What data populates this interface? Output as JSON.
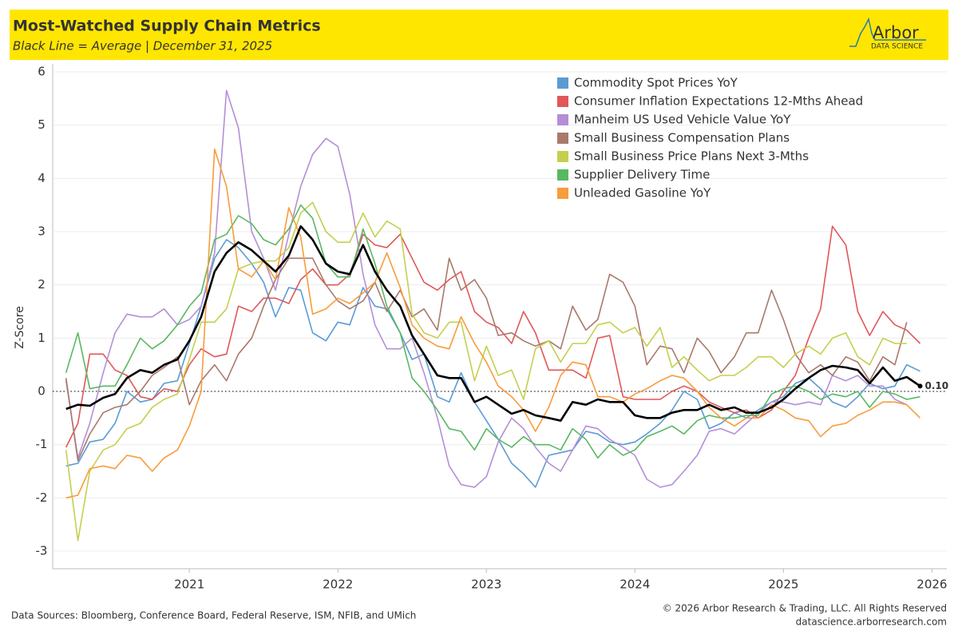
{
  "chart_data": {
    "type": "line",
    "title": "Most-Watched Supply Chain Metrics",
    "subtitle": "Black Line = Average |  December 31, 2025",
    "brand": "Arbor",
    "brand_sub": "DATA SCIENCE",
    "ylabel": "Z-Score",
    "source": "Data Sources: Bloomberg, Conference Board, Federal Reserve, ISM, NFIB, and UMich",
    "copyright": "© 2026 Arbor Research & Trading, LLC. All Rights Reserved",
    "url": "datascience.arborresearch.com",
    "xlim": [
      2020.08,
      2026.1
    ],
    "xticks": [
      2021,
      2022,
      2023,
      2024,
      2025,
      2026
    ],
    "ylim": [
      -3.33,
      6.15
    ],
    "yticks": [
      -3,
      -2,
      -1,
      0,
      1,
      2,
      3,
      4,
      5,
      6
    ],
    "grid": true,
    "reference_line": 0,
    "x": [
      2020.17,
      2020.25,
      2020.33,
      2020.42,
      2020.5,
      2020.58,
      2020.67,
      2020.75,
      2020.83,
      2020.92,
      2021,
      2021.08,
      2021.17,
      2021.25,
      2021.33,
      2021.42,
      2021.5,
      2021.58,
      2021.67,
      2021.75,
      2021.83,
      2021.92,
      2022,
      2022.08,
      2022.17,
      2022.25,
      2022.33,
      2022.42,
      2022.5,
      2022.58,
      2022.67,
      2022.75,
      2022.83,
      2022.92,
      2023,
      2023.08,
      2023.17,
      2023.25,
      2023.33,
      2023.42,
      2023.5,
      2023.58,
      2023.67,
      2023.75,
      2023.83,
      2023.92,
      2024,
      2024.08,
      2024.17,
      2024.25,
      2024.33,
      2024.42,
      2024.5,
      2024.58,
      2024.67,
      2024.75,
      2024.83,
      2024.92,
      2025,
      2025.08,
      2025.17,
      2025.25,
      2025.33,
      2025.42,
      2025.5,
      2025.58,
      2025.67,
      2025.75,
      2025.83,
      2025.92
    ],
    "series": [
      {
        "name": "Commodity Spot Prices YoY",
        "color": "#5a9bd4",
        "width": 1.6,
        "values": [
          -1.4,
          -1.35,
          -0.95,
          -0.9,
          -0.6,
          0.0,
          -0.2,
          -0.15,
          0.15,
          0.2,
          0.9,
          1.6,
          2.5,
          2.85,
          2.7,
          2.4,
          2.05,
          1.4,
          1.95,
          1.9,
          1.1,
          0.95,
          1.3,
          1.25,
          1.95,
          1.6,
          1.55,
          1.1,
          0.6,
          0.7,
          -0.1,
          -0.2,
          0.35,
          -0.2,
          -0.55,
          -0.9,
          -1.35,
          -1.55,
          -1.8,
          -1.2,
          -1.15,
          -1.1,
          -0.75,
          -0.8,
          -0.95,
          -1.0,
          -0.95,
          -0.8,
          -0.6,
          -0.35,
          0.0,
          -0.15,
          -0.7,
          -0.6,
          -0.4,
          -0.5,
          -0.35,
          -0.2,
          -0.1,
          0.15,
          0.25,
          0.05,
          -0.2,
          -0.3,
          -0.1,
          0.15,
          0.05,
          0.1,
          0.5,
          0.38
        ]
      },
      {
        "name": "Consumer Inflation Expectations 12-Mths Ahead",
        "color": "#e15759",
        "width": 1.6,
        "values": [
          -1.05,
          -0.6,
          0.7,
          0.7,
          0.4,
          0.3,
          -0.1,
          -0.15,
          0.05,
          0.0,
          0.5,
          0.8,
          0.65,
          0.7,
          1.6,
          1.5,
          1.75,
          1.75,
          1.65,
          2.1,
          2.3,
          2.0,
          2.0,
          2.2,
          2.95,
          2.75,
          2.7,
          2.95,
          2.5,
          2.05,
          1.9,
          2.1,
          2.25,
          1.5,
          1.3,
          1.2,
          0.9,
          1.5,
          1.1,
          0.4,
          0.4,
          0.4,
          0.25,
          1.0,
          1.05,
          -0.1,
          -0.15,
          -0.15,
          -0.15,
          0.0,
          0.1,
          0.0,
          -0.2,
          -0.3,
          -0.4,
          -0.35,
          -0.5,
          -0.35,
          0.0,
          0.3,
          1.0,
          1.55,
          3.1,
          2.75,
          1.5,
          1.05,
          1.5,
          1.25,
          1.15,
          0.9
        ]
      },
      {
        "name": "Manheim US Used Vehicle Value YoY",
        "color": "#b48fd6",
        "width": 1.6,
        "values": [
          0.2,
          -1.25,
          -0.6,
          0.35,
          1.1,
          1.45,
          1.4,
          1.4,
          1.55,
          1.25,
          1.35,
          1.6,
          2.6,
          5.65,
          4.95,
          3.0,
          2.5,
          1.9,
          2.95,
          3.85,
          4.45,
          4.75,
          4.6,
          3.7,
          2.2,
          1.25,
          0.8,
          0.8,
          1.0,
          0.35,
          -0.5,
          -1.4,
          -1.75,
          -1.8,
          -1.6,
          -0.95,
          -0.5,
          -0.7,
          -1.05,
          -1.35,
          -1.5,
          -1.1,
          -0.65,
          -0.7,
          -0.9,
          -1.05,
          -1.2,
          -1.65,
          -1.8,
          -1.75,
          -1.5,
          -1.2,
          -0.75,
          -0.7,
          -0.8,
          -0.6,
          -0.4,
          -0.2,
          -0.2,
          -0.25,
          -0.2,
          -0.25,
          0.3,
          0.2,
          0.3,
          0.1,
          0.1,
          -0.15,
          -0.25,
          null
        ]
      },
      {
        "name": "Small Business Compensation Plans",
        "color": "#a9796b",
        "width": 1.6,
        "values": [
          0.25,
          -1.3,
          -0.8,
          -0.4,
          -0.3,
          -0.25,
          0.0,
          0.3,
          0.45,
          0.65,
          -0.25,
          0.2,
          0.5,
          0.2,
          0.7,
          1.0,
          1.6,
          2.1,
          2.5,
          2.5,
          2.5,
          2.0,
          1.7,
          1.55,
          1.7,
          2.05,
          1.5,
          1.9,
          1.4,
          1.55,
          1.15,
          2.5,
          1.9,
          2.1,
          1.75,
          1.05,
          1.1,
          0.95,
          0.85,
          0.95,
          0.8,
          1.6,
          1.15,
          1.35,
          2.2,
          2.05,
          1.6,
          0.5,
          0.85,
          0.8,
          0.35,
          1.0,
          0.75,
          0.35,
          0.65,
          1.1,
          1.1,
          1.9,
          1.35,
          0.7,
          0.35,
          0.5,
          0.3,
          0.65,
          0.55,
          0.2,
          0.65,
          0.5,
          1.3,
          null
        ]
      },
      {
        "name": "Small Business Price Plans Next 3-Mths",
        "color": "#c5cf4d",
        "width": 1.6,
        "values": [
          -1.1,
          -2.8,
          -1.5,
          -1.1,
          -1.0,
          -0.7,
          -0.6,
          -0.3,
          -0.15,
          -0.05,
          0.6,
          1.3,
          1.3,
          1.55,
          2.3,
          2.4,
          2.45,
          2.45,
          2.7,
          3.35,
          3.55,
          3.0,
          2.8,
          2.8,
          3.35,
          2.9,
          3.2,
          3.05,
          1.45,
          1.1,
          1.0,
          1.3,
          1.3,
          0.2,
          0.85,
          0.3,
          0.4,
          -0.15,
          0.8,
          0.95,
          0.55,
          0.9,
          0.9,
          1.25,
          1.3,
          1.1,
          1.2,
          0.85,
          1.2,
          0.45,
          0.65,
          0.4,
          0.2,
          0.3,
          0.3,
          0.45,
          0.65,
          0.65,
          0.45,
          0.7,
          0.85,
          0.7,
          1.0,
          1.1,
          0.65,
          0.5,
          1.0,
          0.9,
          0.9,
          null
        ]
      },
      {
        "name": "Supplier Delivery Time",
        "color": "#59b862",
        "width": 1.6,
        "values": [
          0.35,
          1.1,
          0.05,
          0.1,
          0.1,
          0.5,
          1.0,
          0.8,
          0.95,
          1.25,
          1.6,
          1.85,
          2.85,
          2.95,
          3.3,
          3.15,
          2.85,
          2.75,
          3.05,
          3.5,
          3.25,
          2.4,
          2.15,
          2.15,
          3.05,
          2.4,
          1.6,
          1.1,
          0.25,
          0.0,
          -0.35,
          -0.7,
          -0.75,
          -1.1,
          -0.7,
          -0.9,
          -1.05,
          -0.85,
          -1.0,
          -1.0,
          -1.1,
          -0.7,
          -0.9,
          -1.25,
          -1.0,
          -1.2,
          -1.1,
          -0.85,
          -0.75,
          -0.65,
          -0.8,
          -0.55,
          -0.45,
          -0.5,
          -0.5,
          -0.45,
          -0.45,
          -0.05,
          0.05,
          0.1,
          0.0,
          -0.15,
          -0.05,
          -0.1,
          0.0,
          -0.3,
          0.0,
          -0.05,
          -0.15,
          -0.1
        ]
      },
      {
        "name": "Unleaded Gasoline YoY",
        "color": "#f89c3c",
        "width": 1.6,
        "values": [
          -2.0,
          -1.95,
          -1.45,
          -1.4,
          -1.45,
          -1.2,
          -1.25,
          -1.5,
          -1.25,
          -1.1,
          -0.65,
          0.0,
          4.55,
          3.85,
          2.3,
          2.15,
          2.45,
          2.1,
          3.45,
          2.9,
          1.45,
          1.55,
          1.75,
          1.65,
          1.85,
          2.05,
          2.6,
          1.95,
          1.25,
          1.0,
          0.85,
          0.8,
          1.4,
          0.9,
          0.55,
          0.1,
          -0.1,
          -0.35,
          -0.75,
          -0.3,
          0.3,
          0.55,
          0.5,
          -0.1,
          -0.1,
          -0.2,
          -0.05,
          0.05,
          0.2,
          0.3,
          0.25,
          0.0,
          -0.3,
          -0.5,
          -0.65,
          -0.5,
          -0.5,
          -0.25,
          -0.35,
          -0.5,
          -0.55,
          -0.85,
          -0.65,
          -0.6,
          -0.45,
          -0.35,
          -0.2,
          -0.2,
          -0.25,
          -0.5
        ]
      },
      {
        "name": "Average",
        "color": "#000000",
        "width": 2.6,
        "values": [
          -0.33,
          -0.25,
          -0.27,
          -0.12,
          -0.05,
          0.25,
          0.4,
          0.35,
          0.5,
          0.6,
          0.95,
          1.4,
          2.25,
          2.6,
          2.8,
          2.65,
          2.45,
          2.25,
          2.55,
          3.1,
          2.85,
          2.4,
          2.25,
          2.2,
          2.75,
          2.25,
          1.9,
          1.6,
          1.05,
          0.7,
          0.3,
          0.25,
          0.25,
          -0.2,
          -0.1,
          -0.25,
          -0.42,
          -0.35,
          -0.45,
          -0.5,
          -0.55,
          -0.2,
          -0.25,
          -0.15,
          -0.2,
          -0.2,
          -0.45,
          -0.5,
          -0.5,
          -0.4,
          -0.35,
          -0.35,
          -0.25,
          -0.35,
          -0.3,
          -0.4,
          -0.4,
          -0.3,
          -0.15,
          0.05,
          0.25,
          0.4,
          0.48,
          0.45,
          0.4,
          0.15,
          0.45,
          0.2,
          0.27,
          0.1
        ],
        "value_labels": [
          null,
          null,
          null,
          null,
          null,
          null,
          null,
          null,
          null,
          null,
          null,
          null,
          null,
          null,
          null,
          null,
          null,
          null,
          null,
          null,
          null,
          null,
          null,
          null,
          null,
          null,
          null,
          null,
          null,
          null,
          null,
          null,
          null,
          null,
          null,
          null,
          null,
          null,
          null,
          null,
          null,
          null,
          null,
          null,
          null,
          null,
          null,
          null,
          null,
          null,
          null,
          null,
          null,
          null,
          null,
          null,
          null,
          null,
          null,
          null,
          null,
          null,
          null,
          null,
          null,
          null,
          null,
          null,
          null,
          "0.10"
        ]
      }
    ]
  }
}
